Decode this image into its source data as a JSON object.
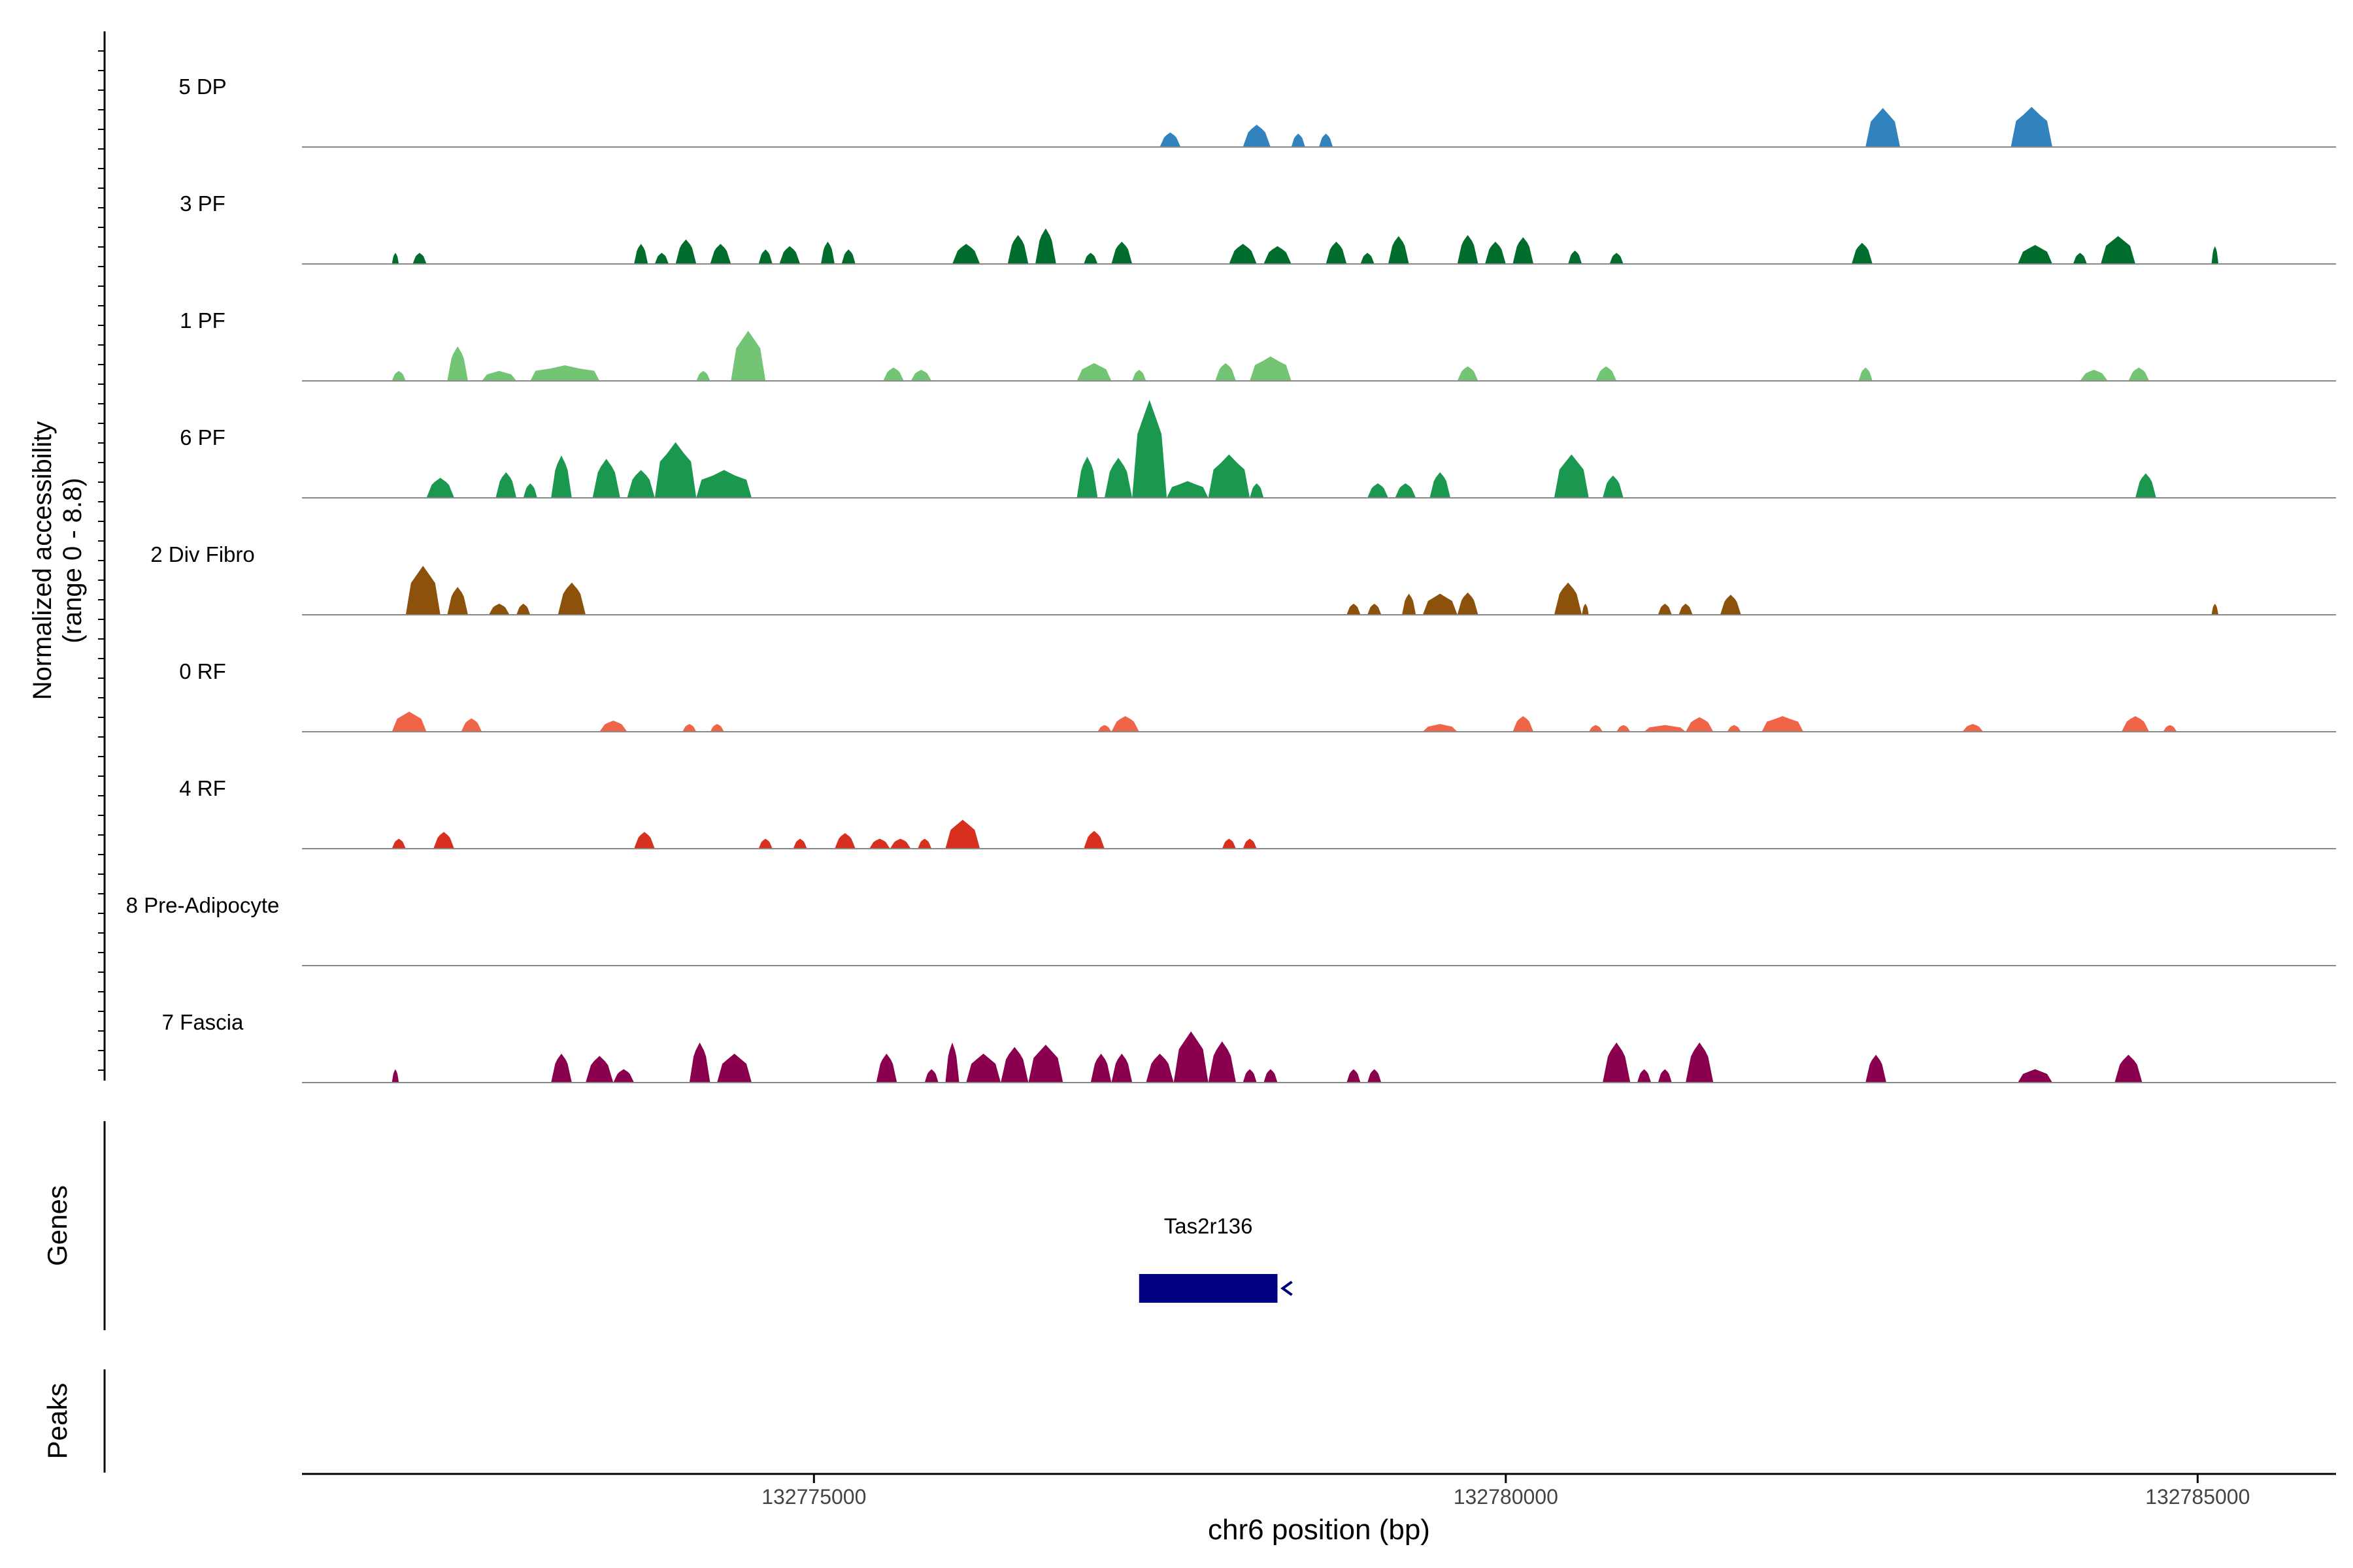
{
  "chart_data": {
    "type": "area",
    "y_axis_title_line1": "Normalized accessibility",
    "y_axis_title_line2": "(range 0 - 8.8)",
    "y_range": [
      0,
      8.8
    ],
    "x_axis_title": "chr6 position (bp)",
    "x_range": [
      132771300,
      132786000
    ],
    "x_ticks": [
      {
        "value": 132775000,
        "label": "132775000"
      },
      {
        "value": 132780000,
        "label": "132780000"
      },
      {
        "value": 132785000,
        "label": "132785000"
      }
    ],
    "tracks": [
      {
        "name": "5 DP",
        "color": "#3182bd",
        "peaks": [
          {
            "start": 132777500,
            "end": 132777650,
            "height": 1.3
          },
          {
            "start": 132778100,
            "end": 132778300,
            "height": 2.0
          },
          {
            "start": 132778450,
            "end": 132778550,
            "height": 1.2
          },
          {
            "start": 132778650,
            "end": 132778750,
            "height": 1.2
          },
          {
            "start": 132782600,
            "end": 132782850,
            "height": 3.5
          },
          {
            "start": 132783650,
            "end": 132783950,
            "height": 3.6
          }
        ]
      },
      {
        "name": "3 PF",
        "color": "#006d2c",
        "peaks": [
          {
            "start": 132771950,
            "end": 132772000,
            "height": 1.0
          },
          {
            "start": 132772100,
            "end": 132772200,
            "height": 1.0
          },
          {
            "start": 132773700,
            "end": 132773800,
            "height": 1.8
          },
          {
            "start": 132773850,
            "end": 132773950,
            "height": 1.0
          },
          {
            "start": 132774000,
            "end": 132774150,
            "height": 2.2
          },
          {
            "start": 132774250,
            "end": 132774400,
            "height": 1.8
          },
          {
            "start": 132774600,
            "end": 132774700,
            "height": 1.3
          },
          {
            "start": 132774750,
            "end": 132774900,
            "height": 1.6
          },
          {
            "start": 132775050,
            "end": 132775150,
            "height": 2.0
          },
          {
            "start": 132775200,
            "end": 132775300,
            "height": 1.3
          },
          {
            "start": 132776000,
            "end": 132776200,
            "height": 1.8
          },
          {
            "start": 132776400,
            "end": 132776550,
            "height": 2.6
          },
          {
            "start": 132776600,
            "end": 132776750,
            "height": 3.2
          },
          {
            "start": 132776950,
            "end": 132777050,
            "height": 1.0
          },
          {
            "start": 132777150,
            "end": 132777300,
            "height": 2.0
          },
          {
            "start": 132778000,
            "end": 132778200,
            "height": 1.8
          },
          {
            "start": 132778250,
            "end": 132778450,
            "height": 1.6
          },
          {
            "start": 132778700,
            "end": 132778850,
            "height": 2.0
          },
          {
            "start": 132778950,
            "end": 132779050,
            "height": 1.0
          },
          {
            "start": 132779150,
            "end": 132779300,
            "height": 2.5
          },
          {
            "start": 132779650,
            "end": 132779800,
            "height": 2.6
          },
          {
            "start": 132779850,
            "end": 132780000,
            "height": 2.0
          },
          {
            "start": 132780050,
            "end": 132780200,
            "height": 2.4
          },
          {
            "start": 132780450,
            "end": 132780550,
            "height": 1.2
          },
          {
            "start": 132780750,
            "end": 132780850,
            "height": 1.0
          },
          {
            "start": 132782500,
            "end": 132782650,
            "height": 1.9
          },
          {
            "start": 132783700,
            "end": 132783950,
            "height": 1.7
          },
          {
            "start": 132784100,
            "end": 132784200,
            "height": 1.0
          },
          {
            "start": 132784300,
            "end": 132784550,
            "height": 2.5
          },
          {
            "start": 132785100,
            "end": 132785150,
            "height": 1.6
          }
        ]
      },
      {
        "name": "1 PF",
        "color": "#74c476",
        "peaks": [
          {
            "start": 132771950,
            "end": 132772050,
            "height": 0.9
          },
          {
            "start": 132772350,
            "end": 132772500,
            "height": 3.1
          },
          {
            "start": 132772600,
            "end": 132772850,
            "height": 0.9
          },
          {
            "start": 132772950,
            "end": 132773450,
            "height": 1.4
          },
          {
            "start": 132774150,
            "end": 132774250,
            "height": 0.9
          },
          {
            "start": 132774400,
            "end": 132774650,
            "height": 4.5
          },
          {
            "start": 132775500,
            "end": 132775650,
            "height": 1.2
          },
          {
            "start": 132775700,
            "end": 132775850,
            "height": 1.0
          },
          {
            "start": 132776900,
            "end": 132777150,
            "height": 1.6
          },
          {
            "start": 132777300,
            "end": 132777400,
            "height": 1.0
          },
          {
            "start": 132777900,
            "end": 132778050,
            "height": 1.6
          },
          {
            "start": 132778150,
            "end": 132778450,
            "height": 2.2
          },
          {
            "start": 132779650,
            "end": 132779800,
            "height": 1.3
          },
          {
            "start": 132780650,
            "end": 132780800,
            "height": 1.3
          },
          {
            "start": 132782550,
            "end": 132782650,
            "height": 1.2
          },
          {
            "start": 132784150,
            "end": 132784350,
            "height": 1.0
          },
          {
            "start": 132784500,
            "end": 132784650,
            "height": 1.2
          }
        ]
      },
      {
        "name": "6 PF",
        "color": "#1b9850",
        "peaks": [
          {
            "start": 132772200,
            "end": 132772400,
            "height": 1.8
          },
          {
            "start": 132772700,
            "end": 132772850,
            "height": 2.3
          },
          {
            "start": 132772900,
            "end": 132773000,
            "height": 1.3
          },
          {
            "start": 132773100,
            "end": 132773250,
            "height": 3.8
          },
          {
            "start": 132773400,
            "end": 132773600,
            "height": 3.5
          },
          {
            "start": 132773650,
            "end": 132773850,
            "height": 2.5
          },
          {
            "start": 132773850,
            "end": 132774150,
            "height": 5.0
          },
          {
            "start": 132774150,
            "end": 132774550,
            "height": 2.5
          },
          {
            "start": 132776900,
            "end": 132777050,
            "height": 3.7
          },
          {
            "start": 132777100,
            "end": 132777300,
            "height": 3.6
          },
          {
            "start": 132777300,
            "end": 132777550,
            "height": 8.8
          },
          {
            "start": 132777550,
            "end": 132777850,
            "height": 1.5
          },
          {
            "start": 132777850,
            "end": 132778150,
            "height": 3.9
          },
          {
            "start": 132778150,
            "end": 132778250,
            "height": 1.3
          },
          {
            "start": 132779000,
            "end": 132779150,
            "height": 1.3
          },
          {
            "start": 132779200,
            "end": 132779350,
            "height": 1.3
          },
          {
            "start": 132779450,
            "end": 132779600,
            "height": 2.3
          },
          {
            "start": 132780350,
            "end": 132780600,
            "height": 3.9
          },
          {
            "start": 132780700,
            "end": 132780850,
            "height": 2.0
          },
          {
            "start": 132784550,
            "end": 132784700,
            "height": 2.2
          }
        ]
      },
      {
        "name": "2 Div Fibro",
        "color": "#8c510a",
        "peaks": [
          {
            "start": 132772050,
            "end": 132772300,
            "height": 4.4
          },
          {
            "start": 132772350,
            "end": 132772500,
            "height": 2.5
          },
          {
            "start": 132772650,
            "end": 132772800,
            "height": 1.0
          },
          {
            "start": 132772850,
            "end": 132772950,
            "height": 1.0
          },
          {
            "start": 132773150,
            "end": 132773350,
            "height": 2.9
          },
          {
            "start": 132778850,
            "end": 132778950,
            "height": 1.0
          },
          {
            "start": 132779000,
            "end": 132779100,
            "height": 1.0
          },
          {
            "start": 132779250,
            "end": 132779350,
            "height": 1.9
          },
          {
            "start": 132779400,
            "end": 132779650,
            "height": 1.9
          },
          {
            "start": 132779650,
            "end": 132779800,
            "height": 2.0
          },
          {
            "start": 132780350,
            "end": 132780550,
            "height": 2.9
          },
          {
            "start": 132780550,
            "end": 132780600,
            "height": 1.0
          },
          {
            "start": 132781100,
            "end": 132781200,
            "height": 1.0
          },
          {
            "start": 132781250,
            "end": 132781350,
            "height": 1.0
          },
          {
            "start": 132781550,
            "end": 132781700,
            "height": 1.8
          },
          {
            "start": 132785100,
            "end": 132785150,
            "height": 1.0
          }
        ]
      },
      {
        "name": "0 RF",
        "color": "#ef6548",
        "peaks": [
          {
            "start": 132771950,
            "end": 132772200,
            "height": 1.8
          },
          {
            "start": 132772450,
            "end": 132772600,
            "height": 1.2
          },
          {
            "start": 132773450,
            "end": 132773650,
            "height": 1.0
          },
          {
            "start": 132774050,
            "end": 132774150,
            "height": 0.7
          },
          {
            "start": 132774250,
            "end": 132774350,
            "height": 0.7
          },
          {
            "start": 132777050,
            "end": 132777150,
            "height": 0.6
          },
          {
            "start": 132777150,
            "end": 132777350,
            "height": 1.4
          },
          {
            "start": 132779400,
            "end": 132779650,
            "height": 0.7
          },
          {
            "start": 132780050,
            "end": 132780200,
            "height": 1.4
          },
          {
            "start": 132780600,
            "end": 132780700,
            "height": 0.6
          },
          {
            "start": 132780800,
            "end": 132780900,
            "height": 0.6
          },
          {
            "start": 132781000,
            "end": 132781300,
            "height": 0.6
          },
          {
            "start": 132781300,
            "end": 132781500,
            "height": 1.3
          },
          {
            "start": 132781600,
            "end": 132781700,
            "height": 0.6
          },
          {
            "start": 132781850,
            "end": 132782150,
            "height": 1.4
          },
          {
            "start": 132783300,
            "end": 132783450,
            "height": 0.7
          },
          {
            "start": 132784450,
            "end": 132784650,
            "height": 1.4
          },
          {
            "start": 132784750,
            "end": 132784850,
            "height": 0.6
          }
        ]
      },
      {
        "name": "4 RF",
        "color": "#d7301f",
        "peaks": [
          {
            "start": 132771950,
            "end": 132772050,
            "height": 0.9
          },
          {
            "start": 132772250,
            "end": 132772400,
            "height": 1.5
          },
          {
            "start": 132773700,
            "end": 132773850,
            "height": 1.5
          },
          {
            "start": 132774600,
            "end": 132774700,
            "height": 0.9
          },
          {
            "start": 132774850,
            "end": 132774950,
            "height": 0.9
          },
          {
            "start": 132775150,
            "end": 132775300,
            "height": 1.4
          },
          {
            "start": 132775400,
            "end": 132775550,
            "height": 0.9
          },
          {
            "start": 132775550,
            "end": 132775700,
            "height": 0.9
          },
          {
            "start": 132775750,
            "end": 132775850,
            "height": 0.9
          },
          {
            "start": 132775950,
            "end": 132776200,
            "height": 2.6
          },
          {
            "start": 132776950,
            "end": 132777100,
            "height": 1.6
          },
          {
            "start": 132777950,
            "end": 132778050,
            "height": 0.9
          },
          {
            "start": 132778100,
            "end": 132778200,
            "height": 0.9
          }
        ]
      },
      {
        "name": "8 Pre-Adipocyte",
        "color": "#cccccc",
        "peaks": []
      },
      {
        "name": "7 Fascia",
        "color": "#8b004e",
        "peaks": [
          {
            "start": 132771950,
            "end": 132772000,
            "height": 1.2
          },
          {
            "start": 132773100,
            "end": 132773250,
            "height": 2.6
          },
          {
            "start": 132773350,
            "end": 132773550,
            "height": 2.4
          },
          {
            "start": 132773550,
            "end": 132773700,
            "height": 1.2
          },
          {
            "start": 132774100,
            "end": 132774250,
            "height": 3.6
          },
          {
            "start": 132774300,
            "end": 132774550,
            "height": 2.6
          },
          {
            "start": 132775450,
            "end": 132775600,
            "height": 2.6
          },
          {
            "start": 132775800,
            "end": 132775900,
            "height": 1.2
          },
          {
            "start": 132775950,
            "end": 132776050,
            "height": 3.6
          },
          {
            "start": 132776100,
            "end": 132776350,
            "height": 2.6
          },
          {
            "start": 132776350,
            "end": 132776550,
            "height": 3.2
          },
          {
            "start": 132776550,
            "end": 132776800,
            "height": 3.4
          },
          {
            "start": 132777000,
            "end": 132777150,
            "height": 2.6
          },
          {
            "start": 132777150,
            "end": 132777300,
            "height": 2.6
          },
          {
            "start": 132777400,
            "end": 132777600,
            "height": 2.6
          },
          {
            "start": 132777600,
            "end": 132777850,
            "height": 4.6
          },
          {
            "start": 132777850,
            "end": 132778050,
            "height": 3.7
          },
          {
            "start": 132778100,
            "end": 132778200,
            "height": 1.2
          },
          {
            "start": 132778250,
            "end": 132778350,
            "height": 1.2
          },
          {
            "start": 132778850,
            "end": 132778950,
            "height": 1.2
          },
          {
            "start": 132779000,
            "end": 132779100,
            "height": 1.2
          },
          {
            "start": 132780700,
            "end": 132780900,
            "height": 3.6
          },
          {
            "start": 132780950,
            "end": 132781050,
            "height": 1.2
          },
          {
            "start": 132781100,
            "end": 132781200,
            "height": 1.2
          },
          {
            "start": 132781300,
            "end": 132781500,
            "height": 3.6
          },
          {
            "start": 132782600,
            "end": 132782750,
            "height": 2.5
          },
          {
            "start": 132783700,
            "end": 132783950,
            "height": 1.2
          },
          {
            "start": 132784400,
            "end": 132784600,
            "height": 2.5
          }
        ]
      }
    ],
    "genes_label": "Genes",
    "genes": [
      {
        "name": "Tas2r136",
        "start": 132777350,
        "end": 132778350,
        "strand": "-",
        "color": "#000080"
      }
    ],
    "peaks_label": "Peaks"
  }
}
